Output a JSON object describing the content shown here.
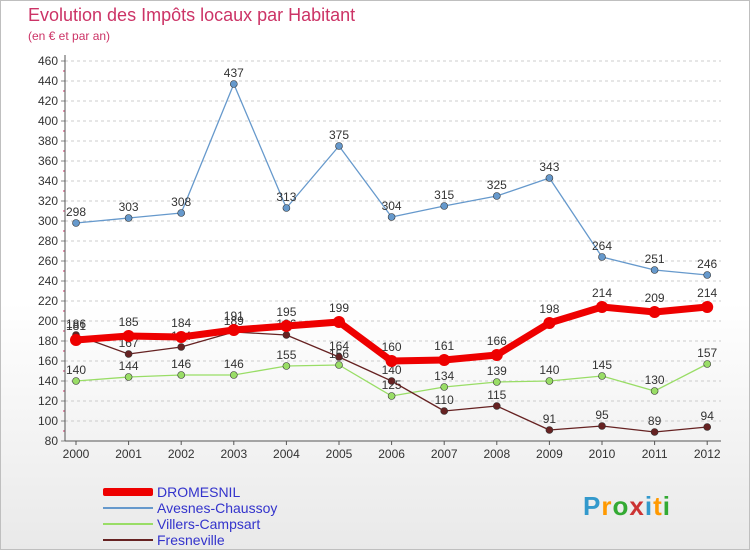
{
  "title": "Evolution des Impôts locaux par Habitant",
  "subtitle": "(en € et par an)",
  "logo": {
    "text": "Proxiti",
    "colors": [
      "#3399cc",
      "#ff9900",
      "#33aa33",
      "#cc3333",
      "#3399cc",
      "#ff9900",
      "#33aa33"
    ]
  },
  "chart_data": {
    "type": "line",
    "title": "Evolution des Impôts locaux par Habitant",
    "subtitle": "(en € et par an)",
    "xlabel": "",
    "ylabel": "",
    "categories": [
      "2000",
      "2001",
      "2002",
      "2003",
      "2004",
      "2005",
      "2006",
      "2007",
      "2008",
      "2009",
      "2010",
      "2011",
      "2012"
    ],
    "ylim": [
      80,
      460
    ],
    "yticks": [
      80,
      100,
      120,
      140,
      160,
      180,
      200,
      220,
      240,
      260,
      280,
      300,
      320,
      340,
      360,
      380,
      400,
      420,
      440,
      460
    ],
    "grid": "horizontal dashed",
    "legend_position": "bottom-left",
    "series": [
      {
        "name": "DROMESNIL",
        "color": "#ee0000",
        "weight": "bold",
        "values": [
          181,
          185,
          184,
          191,
          195,
          199,
          160,
          161,
          166,
          198,
          214,
          209,
          214
        ]
      },
      {
        "name": "Avesnes-Chaussoy",
        "color": "#6699cc",
        "weight": "normal",
        "values": [
          298,
          303,
          308,
          437,
          313,
          375,
          304,
          315,
          325,
          343,
          264,
          251,
          246
        ]
      },
      {
        "name": "Villers-Campsart",
        "color": "#99dd66",
        "weight": "normal",
        "values": [
          140,
          144,
          146,
          146,
          155,
          156,
          125,
          134,
          139,
          140,
          145,
          130,
          157
        ]
      },
      {
        "name": "Fresneville",
        "color": "#662222",
        "weight": "normal",
        "values": [
          186,
          167,
          174,
          189,
          186,
          164,
          140,
          110,
          115,
          91,
          95,
          89,
          94
        ]
      }
    ]
  }
}
